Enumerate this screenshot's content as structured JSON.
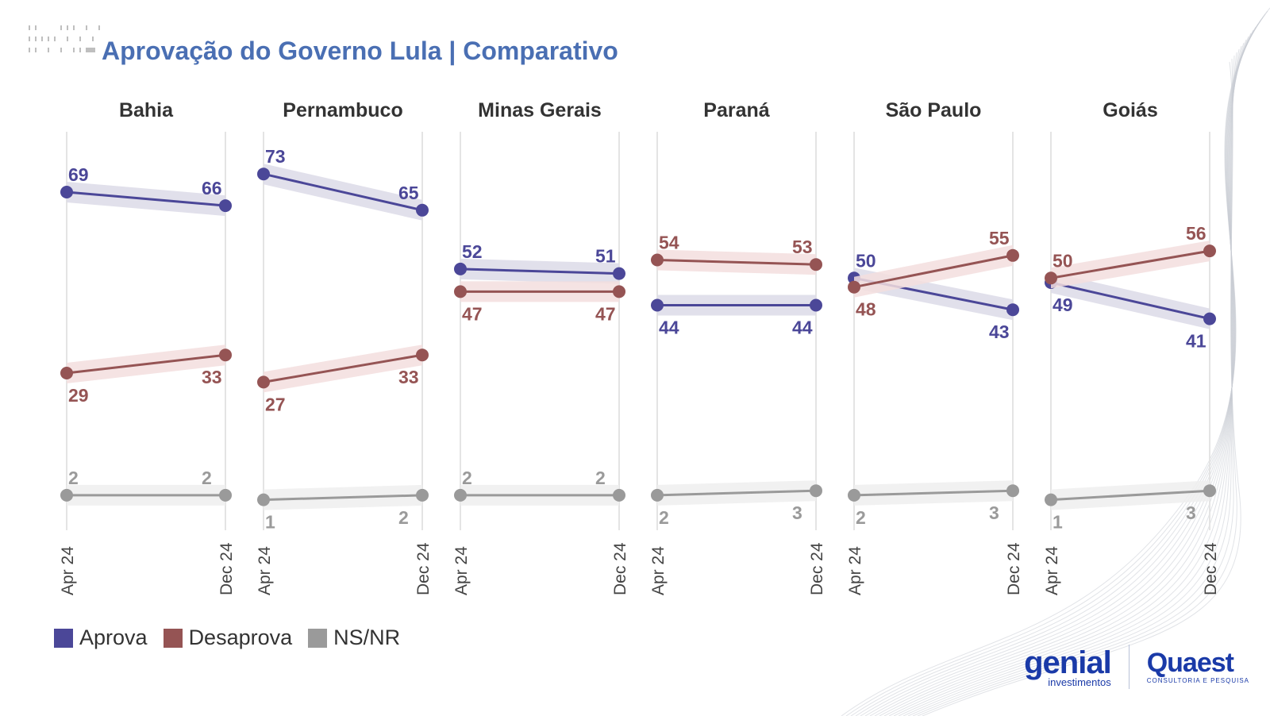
{
  "title": "Aprovação do Governo Lula | Comparativo",
  "colors": {
    "aprova": "#4b4798",
    "desaprova": "#955454",
    "nsnr": "#9a9a9a",
    "title": "#4a6fb3",
    "aprova_band": "#dcdbe8",
    "desaprova_band": "#f3dede",
    "nsnr_band": "#eeeeee"
  },
  "legend": [
    {
      "label": "Aprova",
      "color": "#4b4798"
    },
    {
      "label": "Desaprova",
      "color": "#955454"
    },
    {
      "label": "NS/NR",
      "color": "#9a9a9a"
    }
  ],
  "logos": {
    "genial_name": "genial",
    "genial_sub": "investimentos",
    "quaest_name": "Quaest",
    "quaest_sub": "CONSULTORIA E PESQUISA"
  },
  "chart_data": {
    "type": "line",
    "title": "Aprovação do Governo Lula | Comparativo",
    "x": [
      "Apr 24",
      "Dec 24"
    ],
    "ylim": [
      0,
      80
    ],
    "series_names": [
      "Aprova",
      "Desaprova",
      "NS/NR"
    ],
    "panels": [
      {
        "state": "Bahia",
        "series": [
          {
            "name": "Aprova",
            "values": [
              69,
              66
            ]
          },
          {
            "name": "Desaprova",
            "values": [
              29,
              33
            ]
          },
          {
            "name": "NS/NR",
            "values": [
              2,
              2
            ]
          }
        ]
      },
      {
        "state": "Pernambuco",
        "series": [
          {
            "name": "Aprova",
            "values": [
              73,
              65
            ]
          },
          {
            "name": "Desaprova",
            "values": [
              27,
              33
            ]
          },
          {
            "name": "NS/NR",
            "values": [
              1,
              2
            ]
          }
        ]
      },
      {
        "state": "Minas Gerais",
        "series": [
          {
            "name": "Aprova",
            "values": [
              52,
              51
            ]
          },
          {
            "name": "Desaprova",
            "values": [
              47,
              47
            ]
          },
          {
            "name": "NS/NR",
            "values": [
              2,
              2
            ]
          }
        ]
      },
      {
        "state": "Paraná",
        "series": [
          {
            "name": "Aprova",
            "values": [
              44,
              44
            ]
          },
          {
            "name": "Desaprova",
            "values": [
              54,
              53
            ]
          },
          {
            "name": "NS/NR",
            "values": [
              2,
              3
            ]
          }
        ]
      },
      {
        "state": "São Paulo",
        "series": [
          {
            "name": "Aprova",
            "values": [
              50,
              43
            ]
          },
          {
            "name": "Desaprova",
            "values": [
              48,
              55
            ]
          },
          {
            "name": "NS/NR",
            "values": [
              2,
              3
            ]
          }
        ]
      },
      {
        "state": "Goiás",
        "series": [
          {
            "name": "Aprova",
            "values": [
              49,
              41
            ]
          },
          {
            "name": "Desaprova",
            "values": [
              50,
              56
            ]
          },
          {
            "name": "NS/NR",
            "values": [
              1,
              3
            ]
          }
        ]
      }
    ]
  }
}
